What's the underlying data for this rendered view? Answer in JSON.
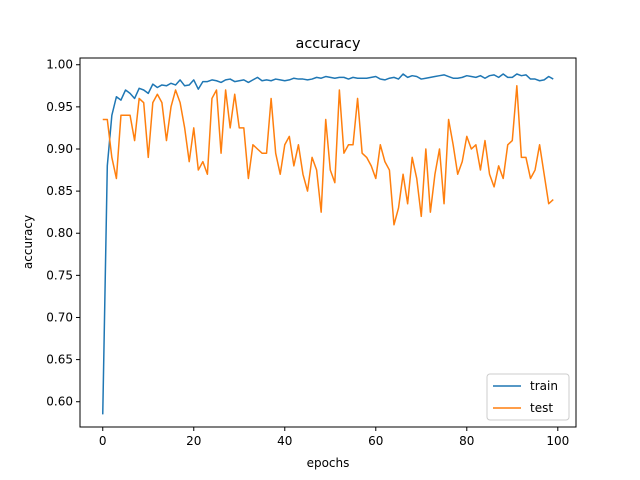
{
  "chart_data": {
    "type": "line",
    "title": "accuracy",
    "xlabel": "epochs",
    "ylabel": "accuracy",
    "xlim": [
      -5,
      104
    ],
    "ylim": [
      0.57,
      1.008
    ],
    "xticks": [
      0,
      20,
      40,
      60,
      80,
      100
    ],
    "xtick_labels": [
      "0",
      "20",
      "40",
      "60",
      "80",
      "100"
    ],
    "yticks": [
      0.6,
      0.65,
      0.7,
      0.75,
      0.8,
      0.85,
      0.9,
      0.95,
      1.0
    ],
    "ytick_labels": [
      "0.60",
      "0.65",
      "0.70",
      "0.75",
      "0.80",
      "0.85",
      "0.90",
      "0.95",
      "1.00"
    ],
    "grid": false,
    "legend_position": "lower-right",
    "x": [
      0,
      1,
      2,
      3,
      4,
      5,
      6,
      7,
      8,
      9,
      10,
      11,
      12,
      13,
      14,
      15,
      16,
      17,
      18,
      19,
      20,
      21,
      22,
      23,
      24,
      25,
      26,
      27,
      28,
      29,
      30,
      31,
      32,
      33,
      34,
      35,
      36,
      37,
      38,
      39,
      40,
      41,
      42,
      43,
      44,
      45,
      46,
      47,
      48,
      49,
      50,
      51,
      52,
      53,
      54,
      55,
      56,
      57,
      58,
      59,
      60,
      61,
      62,
      63,
      64,
      65,
      66,
      67,
      68,
      69,
      70,
      71,
      72,
      73,
      74,
      75,
      76,
      77,
      78,
      79,
      80,
      81,
      82,
      83,
      84,
      85,
      86,
      87,
      88,
      89,
      90,
      91,
      92,
      93,
      94,
      95,
      96,
      97,
      98,
      99
    ],
    "series": [
      {
        "name": "train",
        "color": "#1f77b4",
        "values": [
          0.585,
          0.88,
          0.94,
          0.962,
          0.958,
          0.97,
          0.966,
          0.96,
          0.972,
          0.97,
          0.966,
          0.977,
          0.973,
          0.976,
          0.975,
          0.978,
          0.976,
          0.982,
          0.975,
          0.976,
          0.982,
          0.971,
          0.98,
          0.98,
          0.982,
          0.981,
          0.979,
          0.982,
          0.983,
          0.98,
          0.981,
          0.982,
          0.979,
          0.982,
          0.985,
          0.981,
          0.982,
          0.981,
          0.983,
          0.982,
          0.981,
          0.982,
          0.984,
          0.983,
          0.983,
          0.982,
          0.983,
          0.985,
          0.984,
          0.986,
          0.985,
          0.984,
          0.985,
          0.985,
          0.983,
          0.985,
          0.984,
          0.984,
          0.984,
          0.985,
          0.986,
          0.983,
          0.982,
          0.984,
          0.985,
          0.983,
          0.989,
          0.985,
          0.987,
          0.986,
          0.983,
          0.984,
          0.985,
          0.986,
          0.987,
          0.988,
          0.986,
          0.984,
          0.984,
          0.985,
          0.987,
          0.986,
          0.985,
          0.987,
          0.984,
          0.987,
          0.988,
          0.985,
          0.989,
          0.985,
          0.985,
          0.989,
          0.987,
          0.988,
          0.983,
          0.983,
          0.981,
          0.982,
          0.986,
          0.983
        ]
      },
      {
        "name": "test",
        "color": "#ff7f0e",
        "values": [
          0.935,
          0.935,
          0.89,
          0.865,
          0.94,
          0.94,
          0.94,
          0.91,
          0.96,
          0.955,
          0.89,
          0.955,
          0.965,
          0.955,
          0.91,
          0.95,
          0.97,
          0.955,
          0.925,
          0.885,
          0.925,
          0.875,
          0.885,
          0.87,
          0.96,
          0.97,
          0.895,
          0.97,
          0.925,
          0.965,
          0.925,
          0.925,
          0.865,
          0.905,
          0.9,
          0.895,
          0.895,
          0.96,
          0.895,
          0.87,
          0.905,
          0.915,
          0.88,
          0.905,
          0.87,
          0.85,
          0.89,
          0.875,
          0.825,
          0.935,
          0.875,
          0.86,
          0.97,
          0.895,
          0.905,
          0.905,
          0.96,
          0.895,
          0.89,
          0.88,
          0.865,
          0.905,
          0.885,
          0.875,
          0.81,
          0.83,
          0.87,
          0.835,
          0.89,
          0.865,
          0.82,
          0.9,
          0.825,
          0.87,
          0.9,
          0.835,
          0.935,
          0.905,
          0.87,
          0.885,
          0.915,
          0.9,
          0.905,
          0.875,
          0.91,
          0.87,
          0.855,
          0.88,
          0.865,
          0.905,
          0.91,
          0.975,
          0.89,
          0.89,
          0.865,
          0.875,
          0.905,
          0.87,
          0.835,
          0.84
        ]
      }
    ]
  }
}
